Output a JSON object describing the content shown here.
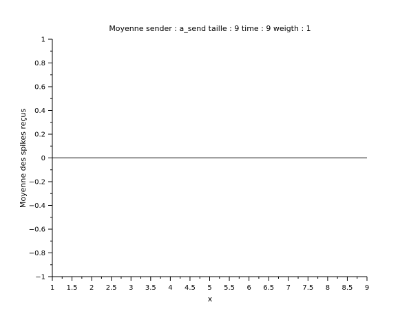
{
  "chart_data": {
    "type": "line",
    "title": "Moyenne sender : a_send taille : 9 time : 9 weigth : 1",
    "xlabel": "x",
    "ylabel": "Moyenne des spikes reçus",
    "xlim": [
      1,
      9
    ],
    "ylim": [
      -1,
      1
    ],
    "x_ticks": [
      1,
      1.5,
      2,
      2.5,
      3,
      3.5,
      4,
      4.5,
      5,
      5.5,
      6,
      6.5,
      7,
      7.5,
      8,
      8.5,
      9
    ],
    "x_tick_labels": [
      "1",
      "1.5",
      "2",
      "2.5",
      "3",
      "3.5",
      "4",
      "4.5",
      "5",
      "5.5",
      "6",
      "6.5",
      "7",
      "7.5",
      "8",
      "8.5",
      "9"
    ],
    "y_ticks": [
      -1,
      -0.8,
      -0.6,
      -0.4,
      -0.2,
      0,
      0.2,
      0.4,
      0.6,
      0.8,
      1
    ],
    "y_tick_labels": [
      "−1",
      "−0.8",
      "−0.6",
      "−0.4",
      "−0.2",
      "0",
      "0.2",
      "0.4",
      "0.6",
      "0.8",
      "1"
    ],
    "grid": false,
    "series": [
      {
        "x": [
          1,
          2,
          3,
          4,
          5,
          6,
          7,
          8,
          9
        ],
        "values": [
          0,
          0,
          0,
          0,
          0,
          0,
          0,
          0,
          0
        ],
        "color": "#000000"
      }
    ]
  }
}
